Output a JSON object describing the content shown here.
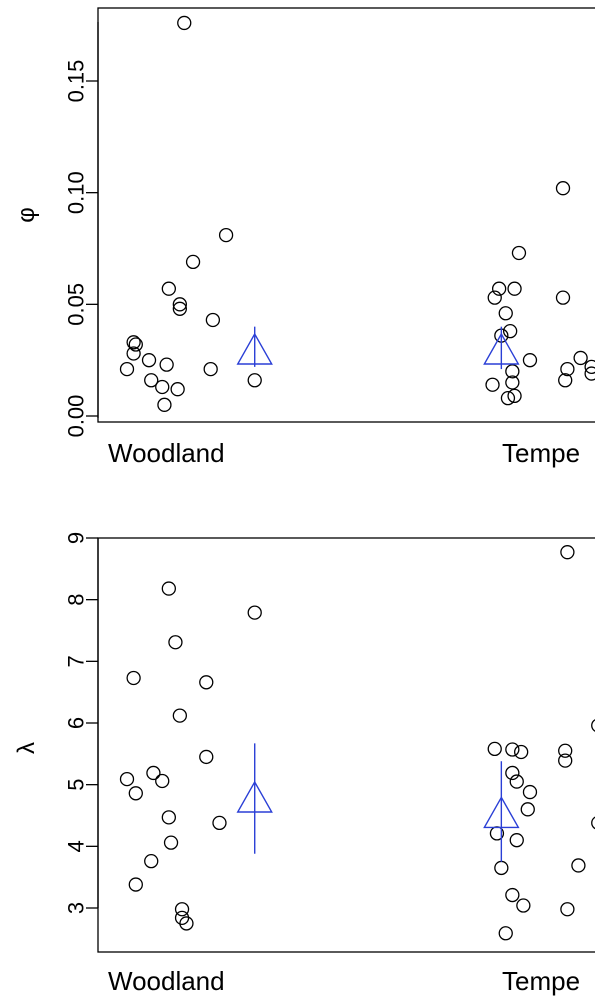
{
  "chart_data": [
    {
      "type": "scatter",
      "ylabel": "φ",
      "categories": [
        "Woodland",
        "Tempe"
      ],
      "ylim": [
        0.0,
        0.18
      ],
      "yticks": [
        0.0,
        0.05,
        0.1,
        0.15
      ],
      "yticklabels": [
        "0.00",
        "0.05",
        "0.10",
        "0.15"
      ],
      "series": [
        {
          "category": "Woodland",
          "points": [
            {
              "x": 0.78,
              "y": 0.176
            },
            {
              "x": 0.97,
              "y": 0.081
            },
            {
              "x": 0.82,
              "y": 0.069
            },
            {
              "x": 0.71,
              "y": 0.057
            },
            {
              "x": 0.76,
              "y": 0.05
            },
            {
              "x": 0.76,
              "y": 0.048
            },
            {
              "x": 0.91,
              "y": 0.043
            },
            {
              "x": 0.55,
              "y": 0.033
            },
            {
              "x": 0.56,
              "y": 0.032
            },
            {
              "x": 0.55,
              "y": 0.028
            },
            {
              "x": 0.62,
              "y": 0.025
            },
            {
              "x": 0.7,
              "y": 0.023
            },
            {
              "x": 0.52,
              "y": 0.021
            },
            {
              "x": 0.9,
              "y": 0.021
            },
            {
              "x": 0.63,
              "y": 0.016
            },
            {
              "x": 1.1,
              "y": 0.016
            },
            {
              "x": 0.68,
              "y": 0.013
            },
            {
              "x": 0.75,
              "y": 0.012
            },
            {
              "x": 0.69,
              "y": 0.005
            }
          ],
          "summary": {
            "x": 1.1,
            "y": 0.03,
            "lower": 0.022,
            "upper": 0.04
          }
        },
        {
          "category": "Tempe",
          "points": [
            {
              "x": 2.5,
              "y": 0.102
            },
            {
              "x": 2.3,
              "y": 0.073
            },
            {
              "x": 2.21,
              "y": 0.057
            },
            {
              "x": 2.28,
              "y": 0.057
            },
            {
              "x": 2.19,
              "y": 0.053
            },
            {
              "x": 2.5,
              "y": 0.053
            },
            {
              "x": 2.24,
              "y": 0.046
            },
            {
              "x": 2.26,
              "y": 0.038
            },
            {
              "x": 2.22,
              "y": 0.036
            },
            {
              "x": 2.35,
              "y": 0.025
            },
            {
              "x": 2.58,
              "y": 0.026
            },
            {
              "x": 2.27,
              "y": 0.02
            },
            {
              "x": 2.52,
              "y": 0.021
            },
            {
              "x": 2.63,
              "y": 0.022
            },
            {
              "x": 2.63,
              "y": 0.019
            },
            {
              "x": 2.18,
              "y": 0.014
            },
            {
              "x": 2.27,
              "y": 0.015
            },
            {
              "x": 2.51,
              "y": 0.016
            },
            {
              "x": 2.25,
              "y": 0.008
            },
            {
              "x": 2.28,
              "y": 0.009
            }
          ],
          "summary": {
            "x": 2.22,
            "y": 0.03,
            "lower": 0.021,
            "upper": 0.04
          }
        }
      ]
    },
    {
      "type": "scatter",
      "ylabel": "λ",
      "categories": [
        "Woodland",
        "Tempe"
      ],
      "ylim": [
        2.5,
        9.0
      ],
      "yticks": [
        3,
        4,
        5,
        6,
        7,
        8,
        9
      ],
      "yticklabels": [
        "3",
        "4",
        "5",
        "6",
        "7",
        "8",
        "9"
      ],
      "series": [
        {
          "category": "Woodland",
          "points": [
            {
              "x": 0.71,
              "y": 8.18
            },
            {
              "x": 1.1,
              "y": 7.79
            },
            {
              "x": 0.74,
              "y": 7.31
            },
            {
              "x": 0.88,
              "y": 6.66
            },
            {
              "x": 0.55,
              "y": 6.73
            },
            {
              "x": 0.76,
              "y": 6.12
            },
            {
              "x": 0.88,
              "y": 5.45
            },
            {
              "x": 0.64,
              "y": 5.19
            },
            {
              "x": 0.68,
              "y": 5.06
            },
            {
              "x": 0.52,
              "y": 5.09
            },
            {
              "x": 0.56,
              "y": 4.86
            },
            {
              "x": 0.71,
              "y": 4.47
            },
            {
              "x": 0.94,
              "y": 4.38
            },
            {
              "x": 0.72,
              "y": 4.06
            },
            {
              "x": 0.63,
              "y": 3.76
            },
            {
              "x": 0.56,
              "y": 3.38
            },
            {
              "x": 0.77,
              "y": 2.98
            },
            {
              "x": 0.77,
              "y": 2.84
            },
            {
              "x": 0.79,
              "y": 2.75
            }
          ],
          "summary": {
            "x": 1.1,
            "y": 4.8,
            "lower": 3.88,
            "upper": 5.67
          }
        },
        {
          "category": "Tempe",
          "points": [
            {
              "x": 2.52,
              "y": 8.77
            },
            {
              "x": 2.66,
              "y": 5.96
            },
            {
              "x": 2.19,
              "y": 5.58
            },
            {
              "x": 2.27,
              "y": 5.57
            },
            {
              "x": 2.31,
              "y": 5.53
            },
            {
              "x": 2.51,
              "y": 5.55
            },
            {
              "x": 2.51,
              "y": 5.39
            },
            {
              "x": 2.27,
              "y": 5.19
            },
            {
              "x": 2.29,
              "y": 5.05
            },
            {
              "x": 2.35,
              "y": 4.88
            },
            {
              "x": 2.34,
              "y": 4.6
            },
            {
              "x": 2.66,
              "y": 4.38
            },
            {
              "x": 2.2,
              "y": 4.21
            },
            {
              "x": 2.29,
              "y": 4.1
            },
            {
              "x": 2.22,
              "y": 3.65
            },
            {
              "x": 2.57,
              "y": 3.69
            },
            {
              "x": 2.27,
              "y": 3.21
            },
            {
              "x": 2.32,
              "y": 3.04
            },
            {
              "x": 2.52,
              "y": 2.98
            },
            {
              "x": 2.24,
              "y": 2.59
            }
          ],
          "summary": {
            "x": 2.22,
            "y": 4.55,
            "lower": 3.75,
            "upper": 5.38
          }
        }
      ]
    }
  ]
}
